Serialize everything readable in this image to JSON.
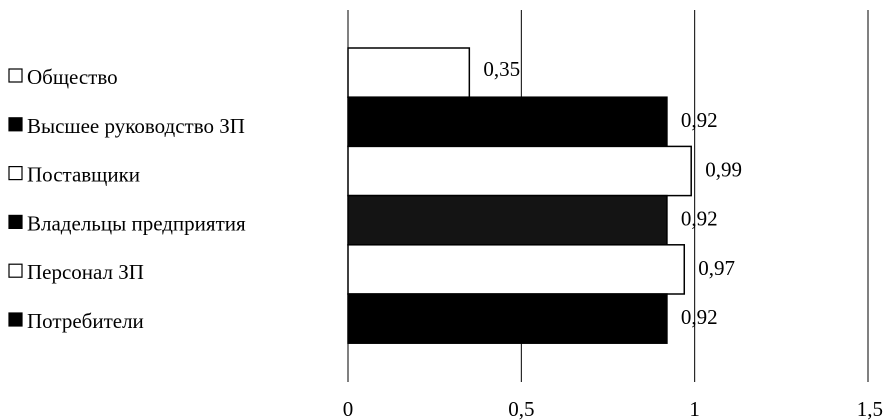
{
  "chart_data": {
    "type": "bar",
    "orientation": "horizontal",
    "categories": [
      "Общество",
      "Высшее руководство ЗП",
      "Поставщики",
      "Владельцы предприятия",
      "Персонал ЗП",
      "Потребители"
    ],
    "values": [
      0.35,
      0.92,
      0.99,
      0.92,
      0.97,
      0.92
    ],
    "value_labels": [
      "0,35",
      "0,92",
      "0,99",
      "0,92",
      "0,97",
      "0,92"
    ],
    "bar_colors": [
      "#ffffff",
      "#000000",
      "#ffffff",
      "#141414",
      "#ffffff",
      "#000000"
    ],
    "legend_markers": [
      "□",
      "■",
      "□",
      "■",
      "□",
      "■"
    ],
    "xlim": [
      0,
      1.5
    ],
    "x_ticks": [
      0,
      0.5,
      1,
      1.5
    ],
    "x_tick_labels": [
      "0",
      "0,5",
      "1",
      "1,5"
    ],
    "grid": "vertical",
    "legend_position": "left"
  }
}
